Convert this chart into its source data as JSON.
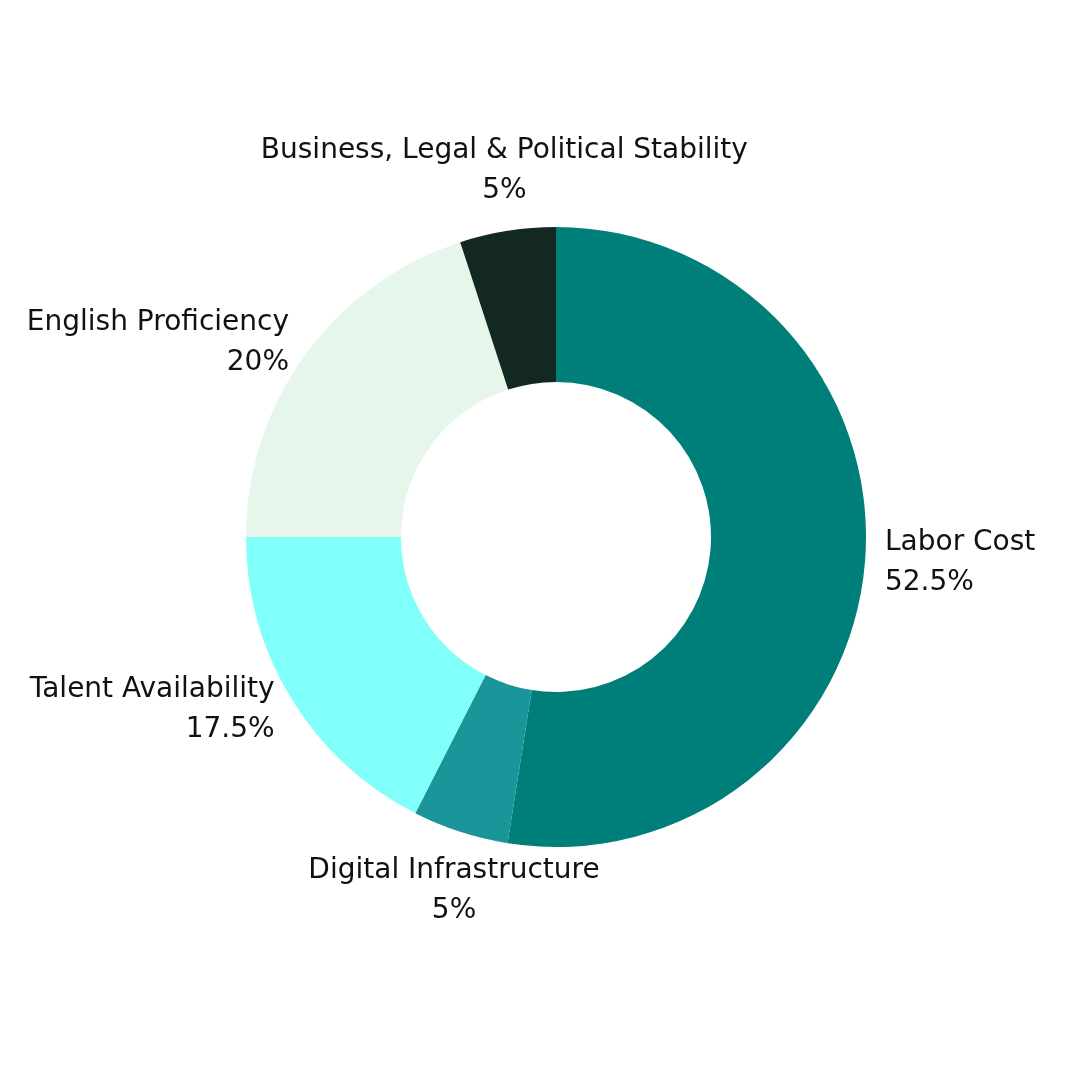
{
  "chart_data": {
    "type": "donut",
    "categories": [
      "Labor Cost",
      "Digital Infrastructure",
      "Talent Availability",
      "English Proficiency",
      "Business, Legal & Political Stability"
    ],
    "values": [
      52.5,
      5,
      17.5,
      20,
      5
    ],
    "value_labels": [
      "52.5%",
      "5%",
      "17.5%",
      "20%",
      "5%"
    ],
    "colors": [
      "#007f7a",
      "#1a9599",
      "#80fffb",
      "#e6f6ea",
      "#132820"
    ],
    "legend": false
  }
}
